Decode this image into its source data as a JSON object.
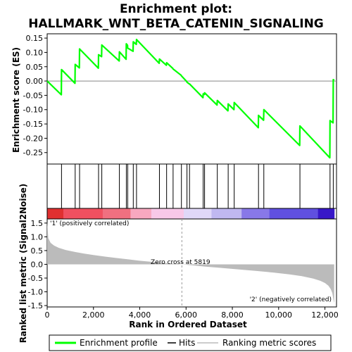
{
  "chart_data": {
    "type": "line",
    "title": "Enrichment plot:",
    "subtitle": "HALLMARK_WNT_BETA_CATENIN_SIGNALING",
    "xlabel": "Rank in Ordered Dataset",
    "ylabel_top": "Enrichment score (ES)",
    "ylabel_bottom": "Ranked list metric (Signal2Noise)",
    "xlim": [
      0,
      12500
    ],
    "x_ticks": [
      0,
      2000,
      4000,
      6000,
      8000,
      10000,
      12000
    ],
    "x_tick_labels": [
      "0",
      "2,000",
      "4,000",
      "6,000",
      "8,000",
      "10,000",
      "12,000"
    ],
    "es_ylim": [
      -0.29,
      0.165
    ],
    "es_ticks": [
      0.15,
      0.1,
      0.05,
      0.0,
      -0.05,
      -0.1,
      -0.15,
      -0.2,
      -0.25
    ],
    "es_tick_labels": [
      "0.15",
      "0.10",
      "0.05",
      "0.00",
      "-0.05",
      "-0.10",
      "-0.15",
      "-0.20",
      "-0.25"
    ],
    "metric_ylim": [
      -1.55,
      1.65
    ],
    "metric_ticks": [
      1.5,
      1.0,
      0.5,
      0.0,
      -0.5,
      -1.0,
      -1.5
    ],
    "metric_tick_labels": [
      "1.5",
      "1.0",
      "0.5",
      "0.0",
      "-0.5",
      "-1.0",
      "-1.5"
    ],
    "n_genes": 12400,
    "hits": [
      620,
      1210,
      1400,
      2220,
      2360,
      3120,
      3420,
      3480,
      3720,
      3860,
      4850,
      5160,
      5440,
      5800,
      6040,
      6150,
      6740,
      6800,
      7350,
      7820,
      8080,
      9130,
      9360,
      10920,
      12220,
      12360
    ],
    "enrichment_profile": {
      "name": "Enrichment profile",
      "x": [
        0,
        610,
        620,
        1200,
        1210,
        1390,
        1400,
        2210,
        2220,
        2350,
        2360,
        3110,
        3120,
        3410,
        3420,
        3470,
        3480,
        3710,
        3720,
        3850,
        3860,
        4840,
        4850,
        5150,
        5160,
        5430,
        5440,
        5790,
        5800,
        6030,
        6040,
        6140,
        6150,
        6730,
        6740,
        6790,
        6800,
        7340,
        7350,
        7810,
        7820,
        8070,
        8080,
        9120,
        9130,
        9350,
        9360,
        10910,
        10920,
        12210,
        12220,
        12350,
        12360,
        12400
      ],
      "y": [
        0.0,
        -0.048,
        0.04,
        -0.008,
        0.058,
        0.046,
        0.112,
        0.045,
        0.092,
        0.085,
        0.126,
        0.07,
        0.102,
        0.076,
        0.13,
        0.125,
        0.115,
        0.104,
        0.137,
        0.128,
        0.145,
        0.062,
        0.077,
        0.055,
        0.064,
        0.044,
        0.042,
        0.02,
        0.018,
        -0.002,
        -0.004,
        -0.01,
        -0.01,
        -0.058,
        -0.045,
        -0.047,
        -0.041,
        -0.084,
        -0.068,
        -0.104,
        -0.08,
        -0.1,
        -0.075,
        -0.163,
        -0.12,
        -0.137,
        -0.1,
        -0.225,
        -0.157,
        -0.268,
        -0.138,
        -0.146,
        0.005,
        0.002
      ]
    },
    "ranked_metric": {
      "x": [
        0,
        50,
        150,
        300,
        500,
        800,
        1200,
        1600,
        2000,
        2500,
        3000,
        3500,
        4000,
        4500,
        5000,
        5500,
        5819,
        6200,
        6800,
        7500,
        8200,
        9000,
        9800,
        10500,
        11000,
        11500,
        11800,
        12000,
        12150,
        12250,
        12320,
        12380,
        12400
      ],
      "y": [
        1.55,
        0.95,
        0.78,
        0.68,
        0.6,
        0.52,
        0.45,
        0.39,
        0.34,
        0.28,
        0.23,
        0.18,
        0.13,
        0.09,
        0.055,
        0.02,
        0.0,
        -0.03,
        -0.08,
        -0.13,
        -0.18,
        -0.24,
        -0.3,
        -0.37,
        -0.43,
        -0.52,
        -0.6,
        -0.68,
        -0.78,
        -0.9,
        -1.05,
        -1.35,
        -1.4
      ]
    },
    "zero_cross_label": "Zero cross at 5819",
    "zero_cross_x": 5819,
    "pos_label": "'1' (positively correlated)",
    "neg_label": "'2' (negatively correlated)",
    "heat_colors": [
      "#e03030",
      "#f05060",
      "#f07080",
      "#f8a8c0",
      "#f8c8e8",
      "#e0d8f8",
      "#c0b8f0",
      "#8878e8",
      "#6050e0",
      "#3818c8"
    ],
    "heat_breaks": [
      0,
      700,
      2400,
      3600,
      4500,
      5900,
      7100,
      8400,
      9600,
      11700,
      12400
    ],
    "legend": [
      {
        "label": "Enrichment profile",
        "color": "#00ff00"
      },
      {
        "label": "Hits",
        "color": "#000000"
      },
      {
        "label": "Ranking metric scores",
        "color": "#bbbbbb"
      }
    ],
    "colors": {
      "profile": "#00ff00",
      "metric_fill": "#bbbbbb",
      "pos_label": "#cc0000",
      "neg_label": "#0000cc"
    }
  }
}
